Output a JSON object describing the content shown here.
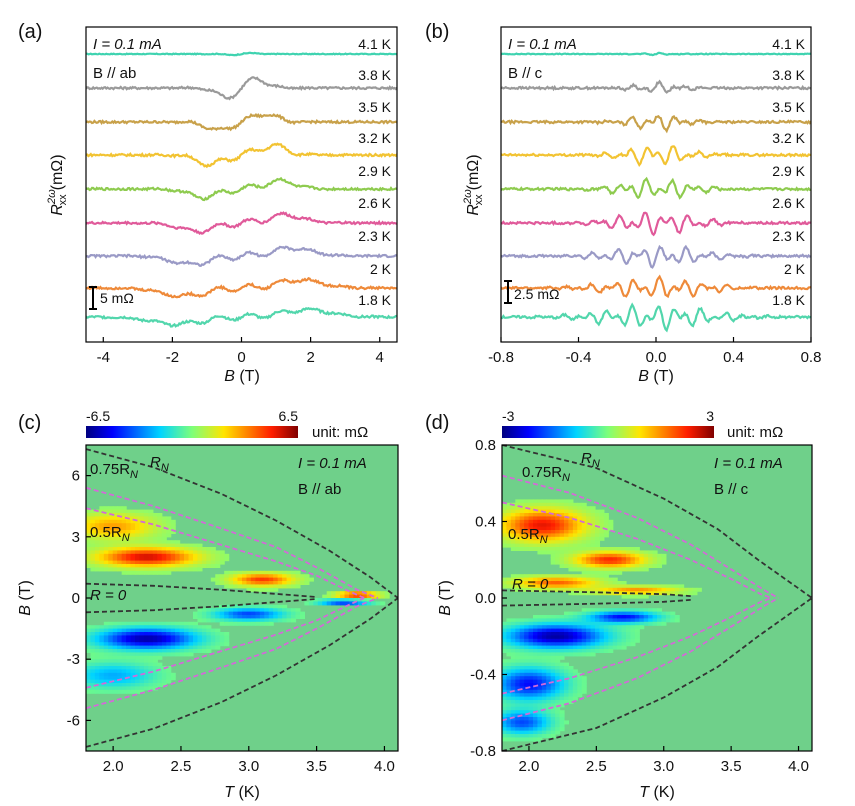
{
  "chart_data": [
    {
      "panel": "(a)",
      "type": "line",
      "xlabel_main": "B",
      "xlabel_unit": "(T)",
      "ylabel_main": "R",
      "ylabel_sup": "2ω",
      "ylabel_sub": "xx",
      "ylabel_unit": "(mΩ)",
      "xlim": [
        -4.5,
        4.5
      ],
      "xticks": [
        "-4",
        "-2",
        "0",
        "2",
        "4"
      ],
      "xtick_values": [
        -4,
        -2,
        0,
        2,
        4
      ],
      "annotations": [
        "I = 0.1 mA",
        "B // ab"
      ],
      "scale_bar": "5 mΩ",
      "series": [
        {
          "name": "4.1 K",
          "color": "#3fd3b0",
          "amp": 0.1
        },
        {
          "name": "3.8 K",
          "color": "#9a9a9a",
          "amp": 1.2
        },
        {
          "name": "3.5 K",
          "color": "#c8a14a",
          "amp": 1.1
        },
        {
          "name": "3.2 K",
          "color": "#f2c332",
          "amp": 1.2
        },
        {
          "name": "2.9 K",
          "color": "#8ecb4f",
          "amp": 1.0
        },
        {
          "name": "2.6 K",
          "color": "#e05a9a",
          "amp": 1.0
        },
        {
          "name": "2.3 K",
          "color": "#9a9ac6",
          "amp": 1.0
        },
        {
          "name": "2 K",
          "color": "#ee8a3a",
          "amp": 1.0
        },
        {
          "name": "1.8 K",
          "color": "#52d6ac",
          "amp": 0.9
        }
      ]
    },
    {
      "panel": "(b)",
      "type": "line",
      "xlabel_main": "B",
      "xlabel_unit": "(T)",
      "ylabel_main": "R",
      "ylabel_sup": "2ω",
      "ylabel_sub": "xx",
      "ylabel_unit": "(mΩ)",
      "xlim": [
        -0.8,
        0.8
      ],
      "xticks": [
        "-0.8",
        "-0.4",
        "0.0",
        "0.4",
        "0.8"
      ],
      "xtick_values": [
        -0.8,
        -0.4,
        0.0,
        0.4,
        0.8
      ],
      "annotations": [
        "I = 0.1 mA",
        "B // c"
      ],
      "scale_bar": "2.5 mΩ",
      "series": [
        {
          "name": "4.1 K",
          "color": "#3fd3b0",
          "amp": 0.1
        },
        {
          "name": "3.8 K",
          "color": "#9a9a9a",
          "amp": 0.6
        },
        {
          "name": "3.5 K",
          "color": "#c8a14a",
          "amp": 0.9
        },
        {
          "name": "3.2 K",
          "color": "#f2c332",
          "amp": 1.1
        },
        {
          "name": "2.9 K",
          "color": "#8ecb4f",
          "amp": 1.1
        },
        {
          "name": "2.6 K",
          "color": "#e05a9a",
          "amp": 1.2
        },
        {
          "name": "2.3 K",
          "color": "#9a9ac6",
          "amp": 1.1
        },
        {
          "name": "2 K",
          "color": "#ee8a3a",
          "amp": 1.1
        },
        {
          "name": "1.8 K",
          "color": "#52d6ac",
          "amp": 1.3
        }
      ]
    },
    {
      "panel": "(c)",
      "type": "heatmap",
      "xlabel_main": "T",
      "xlabel_unit": "(K)",
      "ylabel_main": "B",
      "ylabel_unit": "(T)",
      "xlim": [
        1.8,
        4.1
      ],
      "ylim": [
        -7.5,
        7.5
      ],
      "xticks": [
        "2.0",
        "2.5",
        "3.0",
        "3.5",
        "4.0"
      ],
      "xtick_values": [
        2.0,
        2.5,
        3.0,
        3.5,
        4.0
      ],
      "yticks": [
        "-6",
        "-3",
        "0",
        "3",
        "6"
      ],
      "ytick_values": [
        -6,
        -3,
        0,
        3,
        6
      ],
      "colorbar_min": "-6.5",
      "colorbar_max": "6.5",
      "colorbar_unit": "unit: mΩ",
      "annotations": [
        "I = 0.1 mA",
        "B // ab"
      ],
      "curve_labels": {
        "rn": "R",
        "rn_sub": "N",
        "r075": "0.75R",
        "r05": "0.5R",
        "r0": "R = 0"
      },
      "curves": {
        "rn": [
          [
            1.8,
            7.3
          ],
          [
            2.3,
            6.4
          ],
          [
            2.8,
            5.1
          ],
          [
            3.2,
            3.8
          ],
          [
            3.6,
            2.3
          ],
          [
            3.9,
            1.0
          ],
          [
            4.1,
            0.0
          ]
        ],
        "r075": [
          [
            1.8,
            5.4
          ],
          [
            2.3,
            4.5
          ],
          [
            2.8,
            3.4
          ],
          [
            3.2,
            2.5
          ],
          [
            3.5,
            1.5
          ],
          [
            3.8,
            0.4
          ],
          [
            3.95,
            0.0
          ]
        ],
        "r05": [
          [
            1.8,
            4.4
          ],
          [
            2.3,
            3.6
          ],
          [
            2.8,
            2.6
          ],
          [
            3.2,
            1.8
          ],
          [
            3.5,
            1.1
          ],
          [
            3.75,
            0.3
          ],
          [
            3.85,
            0.0
          ]
        ],
        "r0": [
          [
            1.8,
            0.7
          ],
          [
            2.3,
            0.6
          ],
          [
            2.8,
            0.4
          ],
          [
            3.2,
            0.2
          ],
          [
            3.5,
            0.05
          ]
        ]
      },
      "blobs": [
        {
          "t": 2.25,
          "b": 2.0,
          "st": 0.35,
          "sb": 0.45,
          "v": 5.5
        },
        {
          "t": 3.1,
          "b": 0.9,
          "st": 0.22,
          "sb": 0.3,
          "v": 4.5
        },
        {
          "t": 2.25,
          "b": -2.0,
          "st": 0.35,
          "sb": 0.5,
          "v": -6.0
        },
        {
          "t": 3.0,
          "b": -0.8,
          "st": 0.25,
          "sb": 0.3,
          "v": -4.0
        },
        {
          "t": 3.8,
          "b": 0.15,
          "st": 0.15,
          "sb": 0.15,
          "v": 5.0
        },
        {
          "t": 3.7,
          "b": -0.2,
          "st": 0.18,
          "sb": 0.12,
          "v": -4.5
        },
        {
          "t": 2.0,
          "b": 3.5,
          "st": 0.3,
          "sb": 0.6,
          "v": 3.0
        },
        {
          "t": 2.0,
          "b": -3.8,
          "st": 0.3,
          "sb": 0.6,
          "v": -2.5
        }
      ]
    },
    {
      "panel": "(d)",
      "type": "heatmap",
      "xlabel_main": "T",
      "xlabel_unit": "(K)",
      "ylabel_main": "B",
      "ylabel_unit": "(T)",
      "xlim": [
        1.8,
        4.1
      ],
      "ylim": [
        -0.8,
        0.8
      ],
      "xticks": [
        "2.0",
        "2.5",
        "3.0",
        "3.5",
        "4.0"
      ],
      "xtick_values": [
        2.0,
        2.5,
        3.0,
        3.5,
        4.0
      ],
      "yticks": [
        "-0.8",
        "-0.4",
        "0.0",
        "0.4",
        "0.8"
      ],
      "ytick_values": [
        -0.8,
        -0.4,
        0.0,
        0.4,
        0.8
      ],
      "colorbar_min": "-3",
      "colorbar_max": "3",
      "colorbar_unit": "unit: mΩ",
      "annotations": [
        "I = 0.1 mA",
        "B // c"
      ],
      "curve_labels": {
        "rn": "R",
        "rn_sub": "N",
        "r075": "0.75R",
        "r05": "0.5R",
        "r0": "R = 0"
      },
      "curves": {
        "rn": [
          [
            1.8,
            0.8
          ],
          [
            2.5,
            0.68
          ],
          [
            3.0,
            0.52
          ],
          [
            3.4,
            0.36
          ],
          [
            3.7,
            0.2
          ],
          [
            4.0,
            0.05
          ],
          [
            4.1,
            0.0
          ]
        ],
        "r075": [
          [
            1.8,
            0.64
          ],
          [
            2.3,
            0.55
          ],
          [
            2.8,
            0.42
          ],
          [
            3.2,
            0.28
          ],
          [
            3.5,
            0.15
          ],
          [
            3.75,
            0.04
          ],
          [
            3.85,
            0.0
          ]
        ],
        "r05": [
          [
            1.8,
            0.5
          ],
          [
            2.3,
            0.42
          ],
          [
            2.8,
            0.31
          ],
          [
            3.2,
            0.2
          ],
          [
            3.5,
            0.1
          ],
          [
            3.72,
            0.02
          ],
          [
            3.8,
            0.0
          ]
        ],
        "r0": [
          [
            1.8,
            0.04
          ],
          [
            2.5,
            0.03
          ],
          [
            3.0,
            0.02
          ],
          [
            3.2,
            0.01
          ]
        ]
      },
      "blobs": [
        {
          "t": 2.1,
          "b": 0.38,
          "st": 0.3,
          "sb": 0.08,
          "v": 2.4
        },
        {
          "t": 2.6,
          "b": 0.2,
          "st": 0.25,
          "sb": 0.04,
          "v": 2.2
        },
        {
          "t": 2.2,
          "b": 0.08,
          "st": 0.3,
          "sb": 0.03,
          "v": 1.8
        },
        {
          "t": 2.2,
          "b": -0.2,
          "st": 0.35,
          "sb": 0.06,
          "v": -2.8
        },
        {
          "t": 2.7,
          "b": -0.1,
          "st": 0.25,
          "sb": 0.03,
          "v": -2.2
        },
        {
          "t": 2.0,
          "b": -0.45,
          "st": 0.25,
          "sb": 0.08,
          "v": -2.2
        },
        {
          "t": 2.8,
          "b": 0.04,
          "st": 0.3,
          "sb": 0.02,
          "v": 1.5
        },
        {
          "t": 1.95,
          "b": -0.65,
          "st": 0.2,
          "sb": 0.06,
          "v": -1.8
        }
      ]
    }
  ]
}
